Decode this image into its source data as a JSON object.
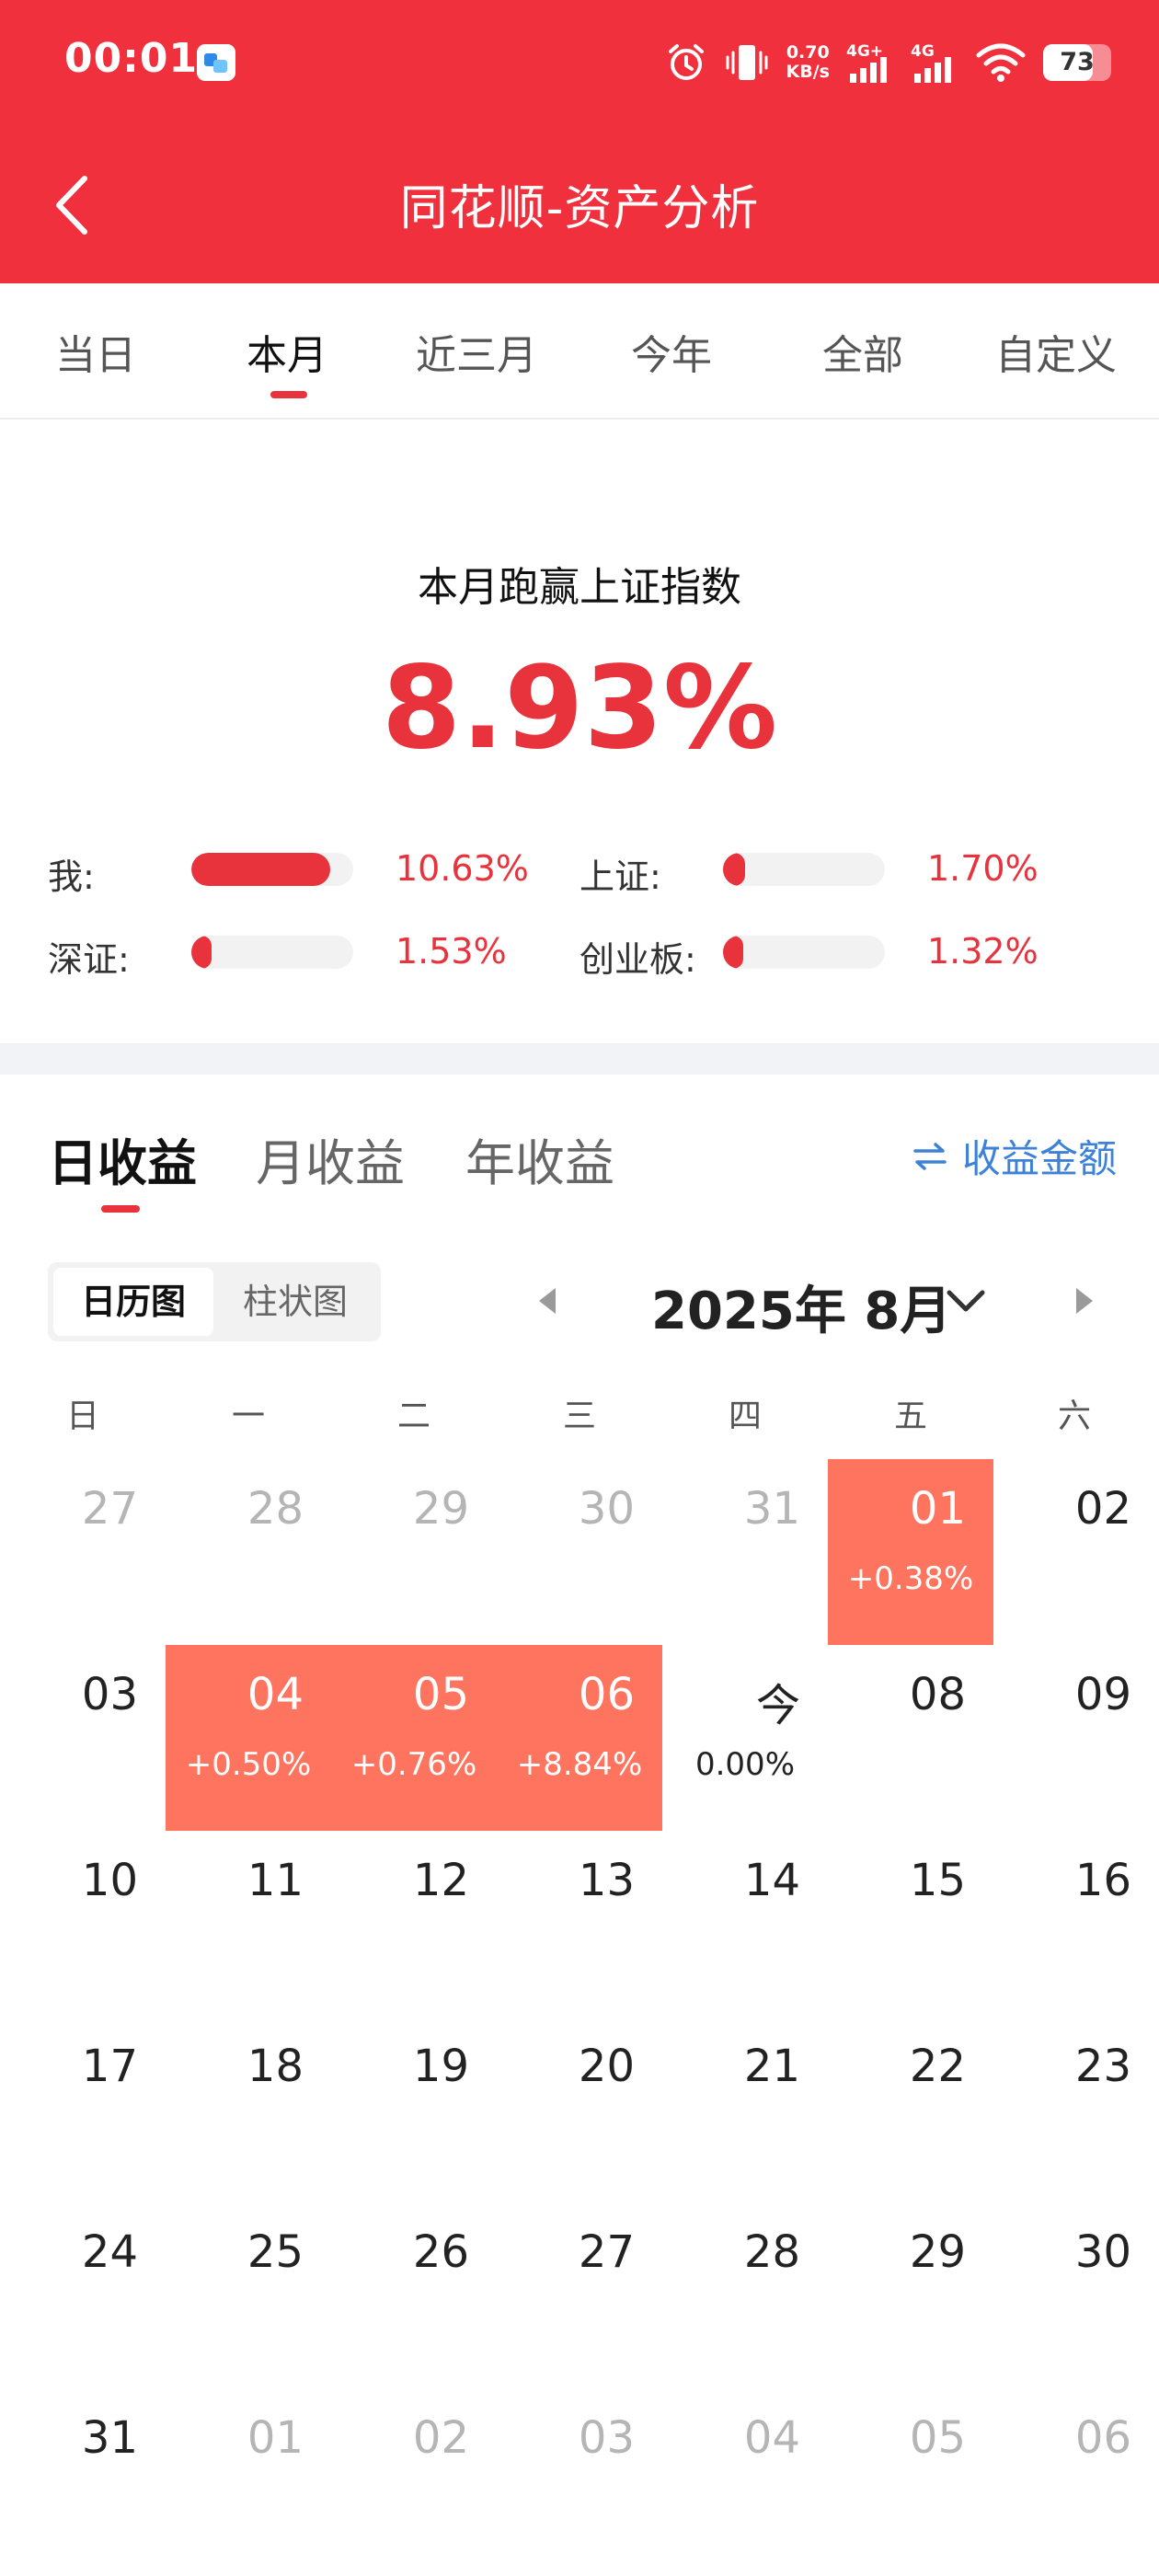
{
  "status_bar": {
    "time": "00:01",
    "net_speed_value": "0.70",
    "net_speed_unit": "KB/s",
    "signal1_label": "4G+",
    "signal2_label": "4G",
    "battery": "73"
  },
  "header": {
    "title": "同花顺-资产分析"
  },
  "period_tabs": [
    {
      "label": "当日"
    },
    {
      "label": "本月",
      "active": true
    },
    {
      "label": "近三月"
    },
    {
      "label": "今年"
    },
    {
      "label": "全部"
    },
    {
      "label": "自定义"
    }
  ],
  "summary": {
    "title": "本月跑赢上证指数",
    "value": "8.93%",
    "comparisons": [
      {
        "label": "我:",
        "value": "10.63%",
        "pct": 10.63
      },
      {
        "label": "上证:",
        "value": "1.70%",
        "pct": 1.7
      },
      {
        "label": "深证:",
        "value": "1.53%",
        "pct": 1.53
      },
      {
        "label": "创业板:",
        "value": "1.32%",
        "pct": 1.32
      }
    ]
  },
  "earnings_tabs": [
    {
      "label": "日收益",
      "active": true
    },
    {
      "label": "月收益"
    },
    {
      "label": "年收益"
    }
  ],
  "toggle_amount_label": "收益金额",
  "view_toggle": {
    "calendar": "日历图",
    "bar": "柱状图",
    "selected": "calendar"
  },
  "month_label": "2025年 8月",
  "weekdays": [
    "日",
    "一",
    "二",
    "三",
    "四",
    "五",
    "六"
  ],
  "calendar": [
    [
      {
        "day": "27",
        "muted": true
      },
      {
        "day": "28",
        "muted": true
      },
      {
        "day": "29",
        "muted": true
      },
      {
        "day": "30",
        "muted": true
      },
      {
        "day": "31",
        "muted": true
      },
      {
        "day": "01",
        "value": "+0.38%",
        "hl": true
      },
      {
        "day": "02"
      }
    ],
    [
      {
        "day": "03"
      },
      {
        "day": "04",
        "value": "+0.50%",
        "hl": true
      },
      {
        "day": "05",
        "value": "+0.76%",
        "hl": true
      },
      {
        "day": "06",
        "value": "+8.84%",
        "hl": true
      },
      {
        "day": "今",
        "value": "0.00%"
      },
      {
        "day": "08"
      },
      {
        "day": "09"
      }
    ],
    [
      {
        "day": "10"
      },
      {
        "day": "11"
      },
      {
        "day": "12"
      },
      {
        "day": "13"
      },
      {
        "day": "14"
      },
      {
        "day": "15"
      },
      {
        "day": "16"
      }
    ],
    [
      {
        "day": "17"
      },
      {
        "day": "18"
      },
      {
        "day": "19"
      },
      {
        "day": "20"
      },
      {
        "day": "21"
      },
      {
        "day": "22"
      },
      {
        "day": "23"
      }
    ],
    [
      {
        "day": "24"
      },
      {
        "day": "25"
      },
      {
        "day": "26"
      },
      {
        "day": "27"
      },
      {
        "day": "28"
      },
      {
        "day": "29"
      },
      {
        "day": "30"
      }
    ],
    [
      {
        "day": "31"
      },
      {
        "day": "01",
        "muted": true
      },
      {
        "day": "02",
        "muted": true
      },
      {
        "day": "03",
        "muted": true
      },
      {
        "day": "04",
        "muted": true
      },
      {
        "day": "05",
        "muted": true
      },
      {
        "day": "06",
        "muted": true
      }
    ]
  ],
  "colors": {
    "brand_red": "#f0303c",
    "accent_red": "#e8323c",
    "highlight": "#ff745f",
    "link_blue": "#3d82d8"
  }
}
